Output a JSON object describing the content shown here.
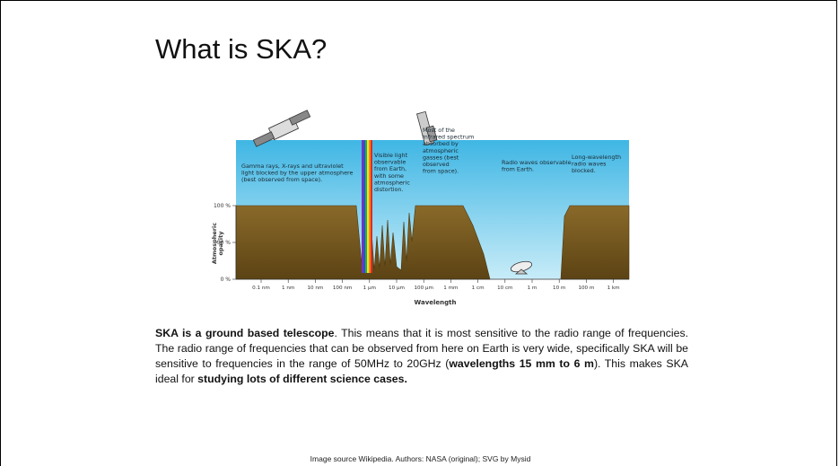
{
  "title": "What is SKA?",
  "figure": {
    "annotations": [
      [
        "Gamma rays, X-rays and ultraviolet",
        "light blocked by the upper atmosphere",
        "(best observed from space)."
      ],
      [
        "Visible light",
        "observable",
        "from Earth,",
        "with some",
        "atmospheric",
        "distortion."
      ],
      [
        "Most of the",
        "infrared spectrum",
        "absorbed by",
        "atmospheric",
        "gasses (best",
        "observed",
        "from space)."
      ],
      [
        "Radio waves observable",
        "from Earth."
      ],
      [
        "Long-wavelength",
        "radio waves",
        "blocked."
      ]
    ],
    "y_axis_label": [
      "Atmospheric",
      "opacity"
    ],
    "y_tick_labels": [
      "100 %",
      "50 %",
      "0 %"
    ],
    "x_tick_labels": [
      "0.1 nm",
      "1 nm",
      "10 nm",
      "100 nm",
      "1 µm",
      "10 µm",
      "100 µm",
      "1 mm",
      "1 cm",
      "10 cm",
      "1 m",
      "10 m",
      "100 m",
      "1 km"
    ],
    "x_axis_label": "Wavelength"
  },
  "paragraph": [
    "SKA is a ground based telescope",
    ". This means that it is most sensitive to the radio range of frequencies. The radio range of frequencies that can be observed from here on Earth is very wide, specifically SKA will be sensitive to frequencies in the range of 50MHz to 20GHz (",
    "wavelengths 15 mm to 6 m",
    "). This makes SKA ideal for ",
    "studying lots of different science cases."
  ],
  "source": "Image source Wikipedia. Authors: NASA (original); SVG by Mysid"
}
